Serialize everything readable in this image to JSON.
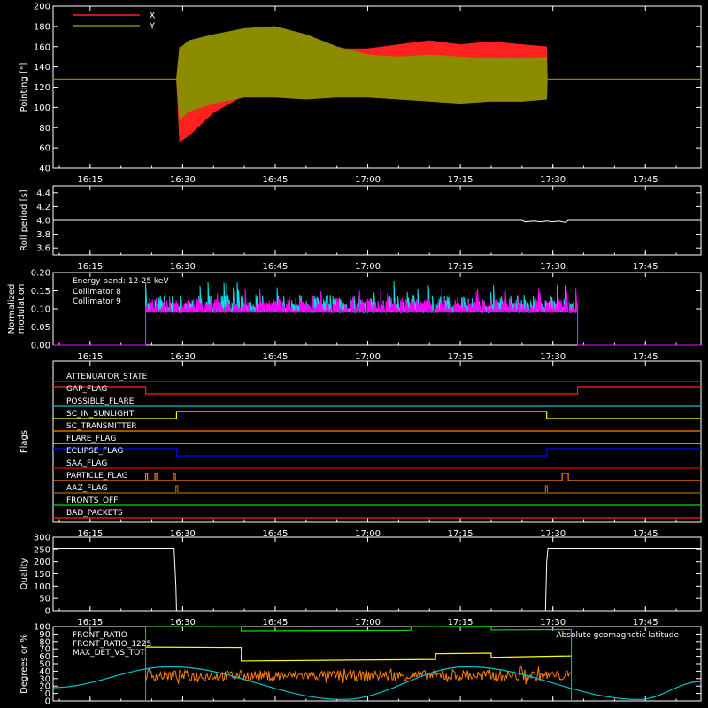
{
  "chart_data": [
    {
      "type": "line",
      "ylabel": "Pointing [\"]",
      "ylim": [
        40,
        200
      ],
      "yticks": [
        40,
        60,
        80,
        100,
        120,
        140,
        160,
        180,
        200
      ],
      "xticklabels": [
        "16:15",
        "16:30",
        "16:45",
        "17:00",
        "17:15",
        "17:30",
        "17:45"
      ],
      "legend_placement": "top-left",
      "series": [
        {
          "name": "X",
          "color": "#ff2020",
          "x": [
            "16:09",
            "16:29",
            "16:29.5",
            "16:31",
            "16:35",
            "16:40",
            "16:45",
            "16:50",
            "16:55",
            "17:00",
            "17:05",
            "17:10",
            "17:15",
            "17:20",
            "17:25",
            "17:29",
            "17:29.1",
            "17:54"
          ],
          "upper": [
            128,
            128,
            160,
            160,
            158,
            160,
            168,
            164,
            158,
            158,
            162,
            166,
            162,
            165,
            162,
            160,
            128,
            128
          ],
          "lower": [
            128,
            128,
            66,
            72,
            95,
            112,
            114,
            118,
            118,
            117,
            112,
            110,
            108,
            110,
            112,
            112,
            128,
            128
          ]
        },
        {
          "name": "Y",
          "color": "#8c8c00",
          "x": [
            "16:09",
            "16:29",
            "16:29.5",
            "16:31",
            "16:35",
            "16:40",
            "16:45",
            "16:50",
            "16:55",
            "17:00",
            "17:05",
            "17:10",
            "17:15",
            "17:20",
            "17:25",
            "17:29",
            "17:29.1",
            "17:54"
          ],
          "upper": [
            128,
            128,
            158,
            166,
            172,
            178,
            180,
            172,
            160,
            152,
            150,
            152,
            150,
            148,
            148,
            150,
            128,
            128
          ],
          "lower": [
            128,
            128,
            88,
            96,
            104,
            110,
            110,
            108,
            110,
            110,
            108,
            106,
            104,
            106,
            106,
            108,
            128,
            128
          ]
        }
      ]
    },
    {
      "type": "line",
      "ylabel": "Roll period [s]",
      "ylim": [
        3.5,
        4.5
      ],
      "yticks": [
        3.6,
        3.8,
        4.0,
        4.2,
        4.4
      ],
      "xticklabels": [
        "16:15",
        "16:30",
        "16:45",
        "17:00",
        "17:15",
        "17:30",
        "17:45"
      ],
      "series": [
        {
          "name": "",
          "color": "#ffffff",
          "x": [
            "16:09",
            "17:25",
            "17:25.5",
            "17:27",
            "17:28",
            "17:29",
            "17:30",
            "17:31",
            "17:32",
            "17:32.5",
            "17:54"
          ],
          "y": [
            4.0,
            4.0,
            3.98,
            3.99,
            3.98,
            3.99,
            3.98,
            3.99,
            3.97,
            4.0,
            4.0
          ]
        }
      ]
    },
    {
      "type": "line",
      "ylabel": "Normalized modulation",
      "ylim": [
        0,
        0.2
      ],
      "yticks": [
        0.0,
        0.05,
        0.1,
        0.15,
        0.2
      ],
      "xticklabels": [
        "16:15",
        "16:30",
        "16:45",
        "17:00",
        "17:15",
        "17:30",
        "17:45"
      ],
      "annotation": "Energy band: 12-25 keV",
      "legend_placement": "top-left",
      "series": [
        {
          "name": "Collimator 8",
          "color": "#00e0e0",
          "x_range": [
            "16:24",
            "17:34"
          ],
          "baseline": 0.09,
          "mean": 0.115,
          "max": 0.18
        },
        {
          "name": "Collimator 9",
          "color": "#ff00ff",
          "x_range": [
            "16:24",
            "17:34"
          ],
          "baseline": 0.09,
          "mean": 0.11,
          "max": 0.16,
          "outside_value": 0
        }
      ]
    },
    {
      "type": "line",
      "ylabel": "Flags",
      "xticklabels": [
        "16:15",
        "16:30",
        "16:45",
        "17:00",
        "17:15",
        "17:30",
        "17:45"
      ],
      "flags": [
        {
          "name": "ATTENUATOR_STATE",
          "color": "#c000c0",
          "transitions": []
        },
        {
          "name": "GAP_FLAG",
          "color": "#ff2020",
          "transitions": [
            [
              "16:24",
              0
            ],
            [
              "17:34",
              1
            ]
          ],
          "initial": 1
        },
        {
          "name": "POSSIBLE_FLARE",
          "color": "#00c0c0",
          "transitions": []
        },
        {
          "name": "SC_IN_SUNLIGHT",
          "color": "#ffff00",
          "transitions": [
            [
              "16:29",
              1
            ],
            [
              "17:29",
              0
            ]
          ],
          "initial": 0
        },
        {
          "name": "SC_TRANSMITTER",
          "color": "#ff8000",
          "transitions": []
        },
        {
          "name": "FLARE_FLAG",
          "color": "#ffff40",
          "transitions": []
        },
        {
          "name": "ECLIPSE_FLAG",
          "color": "#0000ff",
          "transitions": [
            [
              "16:29",
              0
            ],
            [
              "17:29",
              1
            ]
          ],
          "initial": 1
        },
        {
          "name": "SAA_FLAG",
          "color": "#e00000",
          "transitions": []
        },
        {
          "name": "PARTICLE_FLAG",
          "color": "#ff8000",
          "transitions": [
            [
              "16:24",
              1
            ],
            [
              "16:24.3",
              0
            ],
            [
              "16:25.5",
              1
            ],
            [
              "16:25.8",
              0
            ],
            [
              "16:28.5",
              1
            ],
            [
              "16:28.8",
              0
            ],
            [
              "17:31.5",
              1
            ],
            [
              "17:32.5",
              0
            ]
          ],
          "initial": 0
        },
        {
          "name": "AAZ_FLAG",
          "color": "#9c7000",
          "transitions": [
            [
              "16:28.9",
              1
            ],
            [
              "16:29.2",
              0
            ],
            [
              "17:28.8",
              1
            ],
            [
              "17:29.1",
              0
            ]
          ],
          "initial": 0
        },
        {
          "name": "FRONTS_OFF",
          "color": "#00e000",
          "transitions": []
        },
        {
          "name": "BAD_PACKETS",
          "color": "#ff2020",
          "transitions": []
        }
      ]
    },
    {
      "type": "line",
      "ylabel": "Quality",
      "ylim": [
        0,
        300
      ],
      "yticks": [
        0,
        50,
        100,
        150,
        200,
        250,
        300
      ],
      "xticklabels": [
        "16:15",
        "16:30",
        "16:45",
        "17:00",
        "17:15",
        "17:30",
        "17:45"
      ],
      "series": [
        {
          "name": "",
          "color": "#ffffff",
          "x": [
            "16:09",
            "16:28.6",
            "16:28.9",
            "16:29",
            "17:28.8",
            "17:29",
            "17:29.2",
            "17:54"
          ],
          "y": [
            255,
            255,
            100,
            0,
            0,
            200,
            255,
            255
          ]
        }
      ]
    },
    {
      "type": "line",
      "ylabel": "Degrees or %",
      "ylim": [
        0,
        100
      ],
      "yticks": [
        0,
        10,
        20,
        30,
        40,
        50,
        60,
        70,
        80,
        90,
        100
      ],
      "xticklabels": [
        "16:15",
        "16:30",
        "16:45",
        "17:00",
        "17:15",
        "17:30",
        "17:45"
      ],
      "legend_placement": "top-left",
      "series": [
        {
          "name": "FRONT_RATIO",
          "color": "#ffff00",
          "x": [
            "16:24",
            "16:39.5",
            "16:39.5",
            "17:11",
            "17:11",
            "17:20",
            "17:20",
            "17:33"
          ],
          "y": [
            72,
            72,
            54,
            56,
            64,
            64,
            58,
            60
          ]
        },
        {
          "name": "FRONT_RATIO_1225",
          "color": "#00e000",
          "x": [
            "16:24",
            "16:39.5",
            "16:39.5",
            "17:07",
            "17:07",
            "17:20",
            "17:20",
            "17:33"
          ],
          "y": [
            100,
            100,
            94,
            95,
            100,
            100,
            95,
            96
          ]
        },
        {
          "name": "MAX_DET_VS_TOT",
          "color": "#ff8000",
          "x_range": [
            "16:24",
            "17:33"
          ],
          "mean": 34,
          "min": 22,
          "max": 48
        },
        {
          "name": "Absolute geomagnetic latitude",
          "color": "#00c8c8",
          "x": [
            "16:09",
            "16:28",
            "16:56",
            "17:16",
            "17:44",
            "17:54"
          ],
          "y": [
            18,
            46,
            2,
            46,
            2,
            26
          ]
        }
      ]
    }
  ]
}
